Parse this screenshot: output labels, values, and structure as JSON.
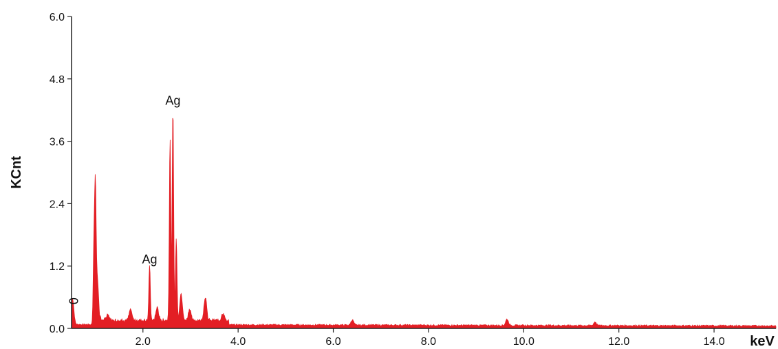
{
  "chart_data": {
    "type": "area",
    "title": "",
    "xlabel": "keV",
    "ylabel": "KCnt",
    "xlim": [
      0.5,
      15.3
    ],
    "ylim": [
      0,
      6.0
    ],
    "xticks": [
      2.0,
      4.0,
      6.0,
      8.0,
      10.0,
      12.0,
      14.0
    ],
    "xtick_labels": [
      "2.0",
      "4.0",
      "6.0",
      "8.0",
      "10.0",
      "12.0",
      "14.0"
    ],
    "yticks": [
      0.0,
      1.2,
      2.4,
      3.6,
      4.8,
      6.0
    ],
    "ytick_labels": [
      "0.0",
      "1.2",
      "2.4",
      "3.6",
      "4.8",
      "6.0"
    ],
    "grid": false,
    "color": "#e31e24",
    "baseline": 0.06,
    "peaks": [
      {
        "x": 0.52,
        "y": 0.5
      },
      {
        "x": 0.97,
        "y": 1.4
      },
      {
        "x": 1.0,
        "y": 2.35
      },
      {
        "x": 1.04,
        "y": 0.9
      },
      {
        "x": 1.26,
        "y": 0.12
      },
      {
        "x": 1.74,
        "y": 0.2
      },
      {
        "x": 2.14,
        "y": 1.05
      },
      {
        "x": 2.3,
        "y": 0.25
      },
      {
        "x": 2.57,
        "y": 3.5
      },
      {
        "x": 2.63,
        "y": 4.1
      },
      {
        "x": 2.7,
        "y": 1.6
      },
      {
        "x": 2.8,
        "y": 0.5
      },
      {
        "x": 2.98,
        "y": 0.22
      },
      {
        "x": 3.31,
        "y": 0.45
      },
      {
        "x": 3.68,
        "y": 0.15
      },
      {
        "x": 6.4,
        "y": 0.1
      },
      {
        "x": 9.65,
        "y": 0.12
      },
      {
        "x": 11.5,
        "y": 0.07
      }
    ],
    "annotations": [
      {
        "text": "Ag",
        "x": 2.63,
        "y": 4.3
      },
      {
        "text": "Ag",
        "x": 2.14,
        "y": 1.25
      },
      {
        "text": "0",
        "x": 0.52,
        "y": 0.5
      }
    ]
  }
}
